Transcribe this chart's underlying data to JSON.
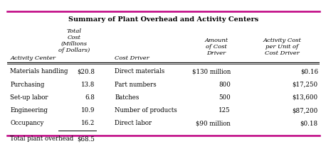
{
  "title": "Summary of Plant Overhead and Activity Centers",
  "headers": [
    [
      "Activity Center",
      "left",
      0.01
    ],
    [
      "Total\nCost\n(Millions\nof Dollars)",
      "center",
      0.215
    ],
    [
      "Cost Driver",
      "left",
      0.345
    ],
    [
      "Amount\nof Cost\nDriver",
      "center",
      0.67
    ],
    [
      "Activity Cost\nper Unit of\nCost Driver",
      "center",
      0.88
    ]
  ],
  "rows": [
    [
      "Materials handling",
      "$20.8",
      "Direct materials",
      "$130 million",
      "$0.16"
    ],
    [
      "Purchasing",
      "13.8",
      "Part numbers",
      "800",
      "$17,250"
    ],
    [
      "Set-up labor",
      "6.8",
      "Batches",
      "500",
      "$13,600"
    ],
    [
      "Engineering",
      "10.9",
      "Number of products",
      "125",
      "$87,200"
    ],
    [
      "Occupancy",
      "16.2",
      "Direct labor",
      "$90 million",
      "$0.18"
    ]
  ],
  "data_cols": [
    [
      "left",
      0.01
    ],
    [
      "right",
      0.28
    ],
    [
      "left",
      0.345
    ],
    [
      "right",
      0.715
    ],
    [
      "right",
      0.995
    ]
  ],
  "total_row": [
    "Total plant overhead",
    "$68.5",
    "",
    "",
    ""
  ],
  "border_color": "#be0081",
  "bg_color": "#ffffff",
  "title_fontsize": 7.0,
  "header_fontsize": 6.0,
  "data_fontsize": 6.2
}
